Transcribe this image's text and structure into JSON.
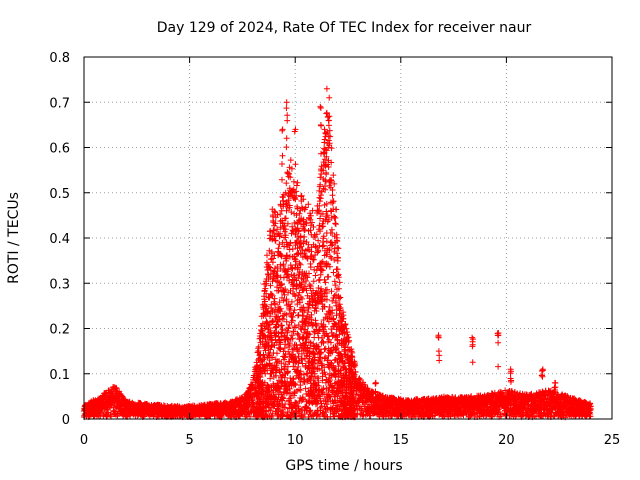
{
  "chart_data": {
    "type": "scatter",
    "title": "Day 129 of 2024, Rate Of TEC Index for receiver naur",
    "xlabel": "GPS time / hours",
    "ylabel": "ROTI / TECUs",
    "xlim": [
      0,
      25
    ],
    "ylim": [
      0,
      0.8
    ],
    "xticks": [
      0,
      5,
      10,
      15,
      20,
      25
    ],
    "yticks": [
      0,
      0.1,
      0.2,
      0.3,
      0.4,
      0.5,
      0.6,
      0.7,
      0.8
    ],
    "grid": true,
    "marker": "+",
    "series_color": "#ff0000",
    "series": [
      {
        "name": "ROTI",
        "envelope": {
          "x": [
            0,
            1,
            1.5,
            2,
            3,
            4,
            5,
            6,
            7,
            7.5,
            8,
            8.3,
            8.6,
            8.9,
            9.2,
            9.5,
            9.8,
            10.0,
            10.3,
            10.6,
            11.0,
            11.3,
            11.6,
            11.9,
            12.2,
            12.5,
            13,
            13.5,
            14,
            15,
            16,
            17,
            18,
            19,
            20,
            21,
            22,
            23,
            24
          ],
          "y": [
            0.025,
            0.055,
            0.07,
            0.035,
            0.03,
            0.025,
            0.025,
            0.03,
            0.035,
            0.045,
            0.08,
            0.17,
            0.33,
            0.46,
            0.46,
            0.5,
            0.6,
            0.53,
            0.5,
            0.48,
            0.44,
            0.6,
            0.68,
            0.5,
            0.25,
            0.18,
            0.09,
            0.06,
            0.05,
            0.04,
            0.04,
            0.045,
            0.045,
            0.05,
            0.06,
            0.05,
            0.06,
            0.045,
            0.03
          ]
        },
        "spikes": [
          {
            "x": 9.6,
            "y": 0.7
          },
          {
            "x": 11.5,
            "y": 0.73
          },
          {
            "x": 11.6,
            "y": 0.71
          },
          {
            "x": 11.2,
            "y": 0.69
          },
          {
            "x": 9.4,
            "y": 0.64
          },
          {
            "x": 10.0,
            "y": 0.64
          },
          {
            "x": 11.4,
            "y": 0.64
          },
          {
            "x": 13.8,
            "y": 0.08
          },
          {
            "x": 16.8,
            "y": 0.185
          },
          {
            "x": 18.4,
            "y": 0.18
          },
          {
            "x": 19.6,
            "y": 0.19
          },
          {
            "x": 20.2,
            "y": 0.11
          },
          {
            "x": 21.7,
            "y": 0.11
          },
          {
            "x": 22.3,
            "y": 0.08
          }
        ]
      }
    ]
  }
}
